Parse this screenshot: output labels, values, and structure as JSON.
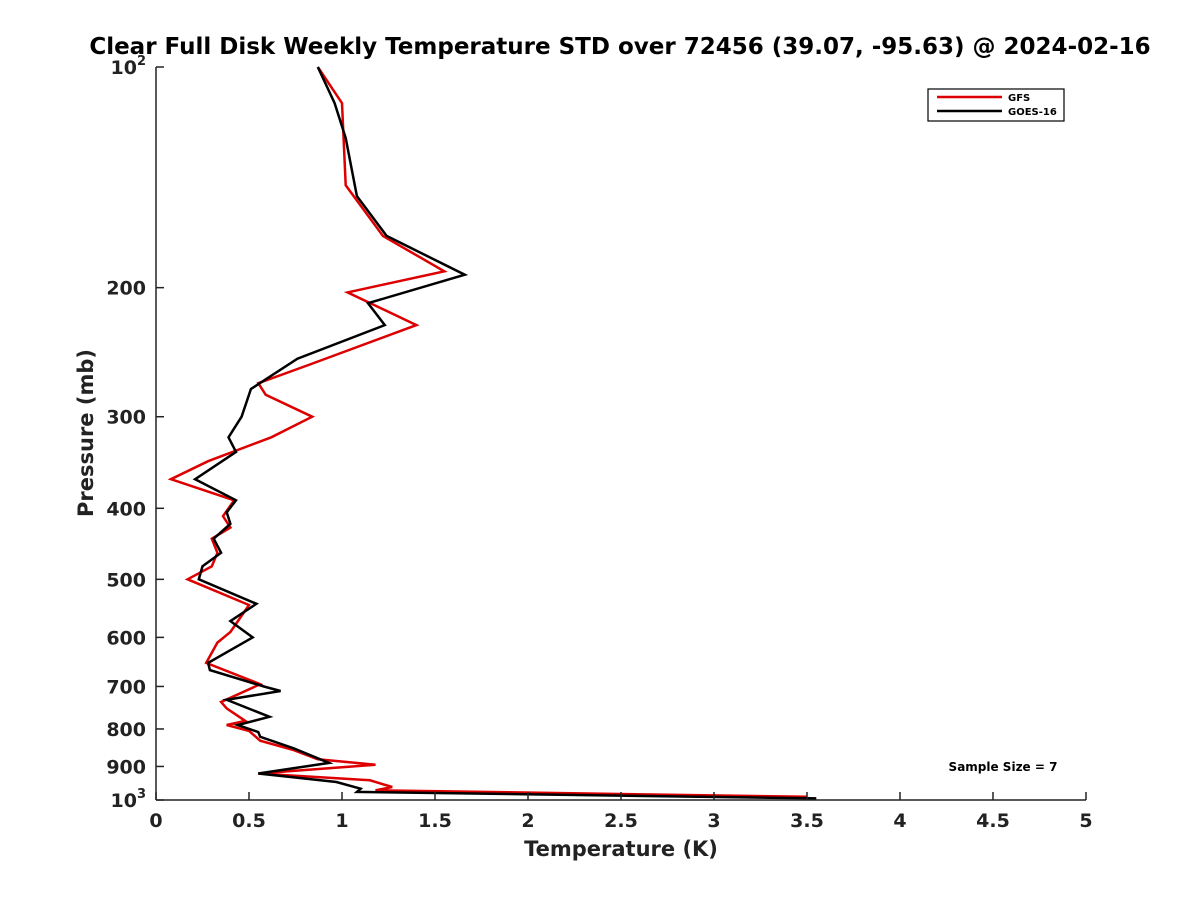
{
  "chart_data": {
    "type": "line",
    "title": "Clear Full Disk Weekly Temperature STD over 72456 (39.07, -95.63) @ 2024-02-16",
    "xlabel": "Temperature (K)",
    "ylabel": "Pressure (mb)",
    "xlim": [
      0,
      5
    ],
    "ylim": [
      100,
      1000
    ],
    "yscale": "log",
    "y_reversed": true,
    "x_ticks": [
      "0",
      "0.5",
      "1",
      "1.5",
      "2",
      "2.5",
      "3",
      "3.5",
      "4",
      "4.5",
      "5"
    ],
    "x_tick_values": [
      0,
      0.5,
      1,
      1.5,
      2,
      2.5,
      3,
      3.5,
      4,
      4.5,
      5
    ],
    "y_ticks": [
      {
        "value": 100,
        "base": "10",
        "exp": "2"
      },
      {
        "value": 200,
        "label": "200"
      },
      {
        "value": 300,
        "label": "300"
      },
      {
        "value": 400,
        "label": "400"
      },
      {
        "value": 500,
        "label": "500"
      },
      {
        "value": 600,
        "label": "600"
      },
      {
        "value": 700,
        "label": "700"
      },
      {
        "value": 800,
        "label": "800"
      },
      {
        "value": 900,
        "label": "900"
      },
      {
        "value": 1000,
        "base": "10",
        "exp": "3"
      }
    ],
    "legend_position": "top-right",
    "annotation": "Sample Size = 7",
    "series": [
      {
        "name": "GFS",
        "color": "#dd0000",
        "points": [
          [
            0.87,
            100
          ],
          [
            1.0,
            112
          ],
          [
            1.02,
            145
          ],
          [
            1.22,
            170
          ],
          [
            1.55,
            190
          ],
          [
            1.03,
            203
          ],
          [
            1.4,
            225
          ],
          [
            0.82,
            255
          ],
          [
            0.55,
            270
          ],
          [
            0.59,
            280
          ],
          [
            0.84,
            300
          ],
          [
            0.62,
            320
          ],
          [
            0.28,
            345
          ],
          [
            0.08,
            365
          ],
          [
            0.42,
            390
          ],
          [
            0.36,
            410
          ],
          [
            0.4,
            425
          ],
          [
            0.3,
            440
          ],
          [
            0.33,
            460
          ],
          [
            0.3,
            480
          ],
          [
            0.17,
            500
          ],
          [
            0.5,
            542
          ],
          [
            0.4,
            590
          ],
          [
            0.33,
            610
          ],
          [
            0.27,
            650
          ],
          [
            0.56,
            695
          ],
          [
            0.35,
            735
          ],
          [
            0.38,
            750
          ],
          [
            0.48,
            780
          ],
          [
            0.38,
            790
          ],
          [
            0.5,
            805
          ],
          [
            0.56,
            830
          ],
          [
            0.74,
            855
          ],
          [
            0.87,
            880
          ],
          [
            1.18,
            895
          ],
          [
            0.55,
            920
          ],
          [
            1.15,
            940
          ],
          [
            1.27,
            960
          ],
          [
            1.18,
            970
          ],
          [
            3.5,
            990
          ]
        ]
      },
      {
        "name": "GOES-16",
        "color": "#000000",
        "points": [
          [
            0.87,
            100
          ],
          [
            0.96,
            112
          ],
          [
            1.02,
            125
          ],
          [
            1.08,
            150
          ],
          [
            1.24,
            170
          ],
          [
            1.66,
            192
          ],
          [
            1.14,
            210
          ],
          [
            1.23,
            225
          ],
          [
            0.76,
            250
          ],
          [
            0.51,
            275
          ],
          [
            0.49,
            285
          ],
          [
            0.46,
            300
          ],
          [
            0.39,
            320
          ],
          [
            0.43,
            335
          ],
          [
            0.21,
            365
          ],
          [
            0.43,
            390
          ],
          [
            0.38,
            405
          ],
          [
            0.4,
            420
          ],
          [
            0.31,
            440
          ],
          [
            0.35,
            460
          ],
          [
            0.25,
            480
          ],
          [
            0.23,
            500
          ],
          [
            0.54,
            540
          ],
          [
            0.4,
            570
          ],
          [
            0.52,
            600
          ],
          [
            0.28,
            650
          ],
          [
            0.29,
            665
          ],
          [
            0.58,
            700
          ],
          [
            0.67,
            710
          ],
          [
            0.38,
            730
          ],
          [
            0.61,
            770
          ],
          [
            0.44,
            790
          ],
          [
            0.55,
            808
          ],
          [
            0.56,
            820
          ],
          [
            0.74,
            850
          ],
          [
            0.93,
            890
          ],
          [
            0.55,
            920
          ],
          [
            0.97,
            945
          ],
          [
            1.1,
            965
          ],
          [
            1.08,
            975
          ],
          [
            3.55,
            995
          ]
        ]
      }
    ]
  }
}
